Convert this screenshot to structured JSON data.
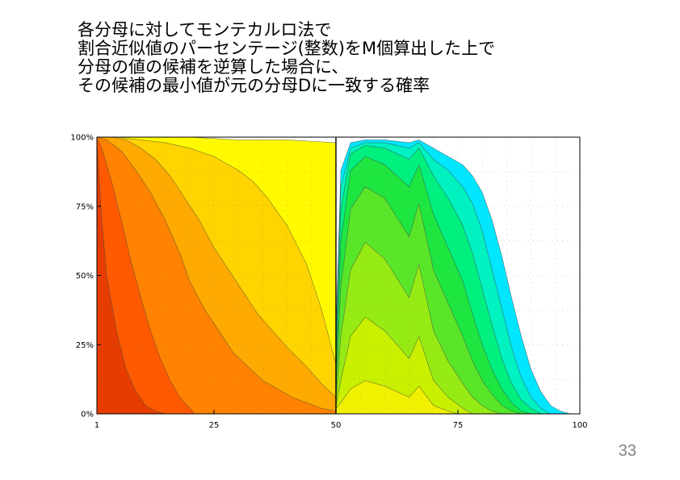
{
  "slide": {
    "title_lines": [
      "各分母に対してモンテカルロ法で",
      "割合近似値のパーセンテージ(整数)をM個算出した上で",
      "分母の値の候補を逆算した場合に、",
      "その候補の最小値が元の分母Dに一致する確率"
    ],
    "page_number": "33"
  },
  "chart_data": {
    "type": "area",
    "title": "",
    "xlabel": "",
    "ylabel": "",
    "xlim": [
      1,
      100
    ],
    "ylim": [
      0,
      100
    ],
    "x_ticks": [
      1,
      25,
      50,
      75,
      100
    ],
    "x_tick_labels": [
      "1",
      "25",
      "50",
      "75",
      "100"
    ],
    "y_ticks": [
      0,
      25,
      50,
      75,
      100
    ],
    "y_tick_labels": [
      "0%",
      "25%",
      "50%",
      "75%",
      "100%"
    ],
    "grid": true,
    "legend": "none",
    "series": [
      {
        "color": "#00e6ff",
        "points": [
          [
            50,
            30
          ],
          [
            51,
            88
          ],
          [
            53,
            98
          ],
          [
            56,
            99
          ],
          [
            60,
            99
          ],
          [
            65,
            98
          ],
          [
            67,
            99
          ],
          [
            70,
            96
          ],
          [
            73,
            93
          ],
          [
            76,
            90
          ],
          [
            78,
            86
          ],
          [
            80,
            80
          ],
          [
            82,
            70
          ],
          [
            84,
            57
          ],
          [
            86,
            42
          ],
          [
            88,
            28
          ],
          [
            90,
            16
          ],
          [
            92,
            8
          ],
          [
            94,
            3
          ],
          [
            96,
            1
          ],
          [
            98,
            0
          ]
        ]
      },
      {
        "color": "#00f2c0",
        "points": [
          [
            50,
            26
          ],
          [
            51,
            82
          ],
          [
            53,
            96
          ],
          [
            56,
            98
          ],
          [
            60,
            98
          ],
          [
            65,
            96
          ],
          [
            67,
            98
          ],
          [
            70,
            92
          ],
          [
            73,
            88
          ],
          [
            76,
            82
          ],
          [
            78,
            76
          ],
          [
            80,
            66
          ],
          [
            82,
            52
          ],
          [
            84,
            38
          ],
          [
            86,
            24
          ],
          [
            88,
            13
          ],
          [
            90,
            6
          ],
          [
            92,
            2
          ],
          [
            94,
            0
          ]
        ]
      },
      {
        "color": "#00f080",
        "points": [
          [
            50,
            20
          ],
          [
            51,
            74
          ],
          [
            53,
            94
          ],
          [
            56,
            97
          ],
          [
            60,
            96
          ],
          [
            65,
            92
          ],
          [
            67,
            96
          ],
          [
            70,
            86
          ],
          [
            73,
            78
          ],
          [
            76,
            68
          ],
          [
            78,
            58
          ],
          [
            80,
            45
          ],
          [
            82,
            32
          ],
          [
            84,
            20
          ],
          [
            86,
            11
          ],
          [
            88,
            5
          ],
          [
            90,
            2
          ],
          [
            92,
            0
          ]
        ]
      },
      {
        "color": "#1ee640",
        "points": [
          [
            50,
            14
          ],
          [
            51,
            62
          ],
          [
            53,
            88
          ],
          [
            56,
            93
          ],
          [
            60,
            90
          ],
          [
            65,
            82
          ],
          [
            67,
            90
          ],
          [
            70,
            72
          ],
          [
            73,
            60
          ],
          [
            76,
            48
          ],
          [
            78,
            36
          ],
          [
            80,
            25
          ],
          [
            82,
            16
          ],
          [
            84,
            9
          ],
          [
            86,
            4
          ],
          [
            88,
            1
          ],
          [
            90,
            0
          ]
        ]
      },
      {
        "color": "#5ae628",
        "points": [
          [
            50,
            9
          ],
          [
            51,
            46
          ],
          [
            53,
            74
          ],
          [
            56,
            82
          ],
          [
            60,
            78
          ],
          [
            65,
            64
          ],
          [
            67,
            76
          ],
          [
            70,
            52
          ],
          [
            73,
            40
          ],
          [
            76,
            28
          ],
          [
            78,
            19
          ],
          [
            80,
            12
          ],
          [
            82,
            7
          ],
          [
            84,
            3
          ],
          [
            86,
            1
          ],
          [
            88,
            0
          ]
        ]
      },
      {
        "color": "#96eb14",
        "points": [
          [
            50,
            5
          ],
          [
            51,
            28
          ],
          [
            53,
            52
          ],
          [
            56,
            62
          ],
          [
            60,
            56
          ],
          [
            65,
            42
          ],
          [
            67,
            54
          ],
          [
            70,
            30
          ],
          [
            73,
            19
          ],
          [
            76,
            11
          ],
          [
            78,
            6
          ],
          [
            80,
            3
          ],
          [
            82,
            1
          ],
          [
            84,
            0
          ]
        ]
      },
      {
        "color": "#c8f000",
        "points": [
          [
            50,
            3
          ],
          [
            51,
            12
          ],
          [
            53,
            28
          ],
          [
            56,
            35
          ],
          [
            60,
            30
          ],
          [
            65,
            20
          ],
          [
            67,
            28
          ],
          [
            70,
            12
          ],
          [
            73,
            6
          ],
          [
            76,
            2
          ],
          [
            78,
            0
          ]
        ]
      },
      {
        "color": "#f0f000",
        "points": [
          [
            50,
            2
          ],
          [
            51,
            4
          ],
          [
            53,
            9
          ],
          [
            56,
            12
          ],
          [
            60,
            10
          ],
          [
            65,
            6
          ],
          [
            67,
            10
          ],
          [
            70,
            3
          ],
          [
            73,
            1
          ],
          [
            75,
            0
          ]
        ]
      },
      {
        "color": "#fffa00",
        "points": [
          [
            1,
            100
          ],
          [
            10,
            100
          ],
          [
            20,
            100
          ],
          [
            30,
            99
          ],
          [
            40,
            99
          ],
          [
            50,
            98
          ],
          [
            50,
            0
          ]
        ]
      },
      {
        "color": "#ffd400",
        "points": [
          [
            1,
            100
          ],
          [
            5,
            100
          ],
          [
            10,
            99
          ],
          [
            15,
            98
          ],
          [
            20,
            96
          ],
          [
            25,
            93
          ],
          [
            30,
            88
          ],
          [
            33,
            84
          ],
          [
            36,
            78
          ],
          [
            40,
            68
          ],
          [
            44,
            54
          ],
          [
            47,
            38
          ],
          [
            50,
            18
          ],
          [
            50,
            0
          ]
        ]
      },
      {
        "color": "#ffaa00",
        "points": [
          [
            1,
            100
          ],
          [
            4,
            100
          ],
          [
            7,
            99
          ],
          [
            10,
            96
          ],
          [
            13,
            92
          ],
          [
            16,
            86
          ],
          [
            19,
            78
          ],
          [
            22,
            70
          ],
          [
            25,
            60
          ],
          [
            28,
            52
          ],
          [
            31,
            44
          ],
          [
            34,
            36
          ],
          [
            37,
            30
          ],
          [
            40,
            24
          ],
          [
            44,
            17
          ],
          [
            47,
            11
          ],
          [
            50,
            6
          ],
          [
            50,
            0
          ]
        ]
      },
      {
        "color": "#ff8200",
        "points": [
          [
            1,
            100
          ],
          [
            3,
            99
          ],
          [
            6,
            95
          ],
          [
            9,
            88
          ],
          [
            12,
            80
          ],
          [
            15,
            70
          ],
          [
            18,
            58
          ],
          [
            20,
            48
          ],
          [
            23,
            38
          ],
          [
            26,
            30
          ],
          [
            29,
            22
          ],
          [
            32,
            17
          ],
          [
            35,
            12
          ],
          [
            38,
            9
          ],
          [
            41,
            6
          ],
          [
            44,
            4
          ],
          [
            47,
            2
          ],
          [
            50,
            1
          ],
          [
            50,
            0
          ]
        ]
      },
      {
        "color": "#ff5a00",
        "points": [
          [
            1,
            100
          ],
          [
            2,
            96
          ],
          [
            4,
            84
          ],
          [
            6,
            70
          ],
          [
            8,
            55
          ],
          [
            10,
            42
          ],
          [
            12,
            30
          ],
          [
            14,
            20
          ],
          [
            16,
            12
          ],
          [
            18,
            6
          ],
          [
            20,
            2
          ],
          [
            21,
            0
          ]
        ]
      },
      {
        "color": "#e63c00",
        "points": [
          [
            1,
            98
          ],
          [
            2,
            70
          ],
          [
            3,
            50
          ],
          [
            5,
            30
          ],
          [
            7,
            16
          ],
          [
            9,
            8
          ],
          [
            11,
            3
          ],
          [
            13,
            1
          ],
          [
            15,
            0
          ]
        ]
      }
    ]
  }
}
